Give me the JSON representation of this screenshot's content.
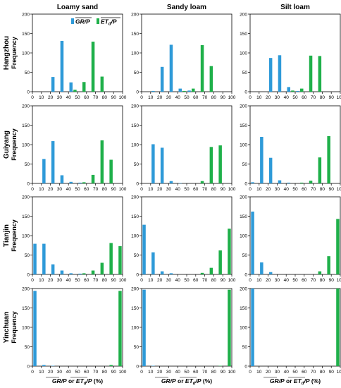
{
  "figure": {
    "columns": [
      "Loamy sand",
      "Sandy loam",
      "Silt loam"
    ],
    "rows": [
      "Hangzhou",
      "Guiyang",
      "Tianjin",
      "Yinchuan"
    ],
    "ylabel": "Frequency",
    "xlabel": "GR/P or ETd/P (%)",
    "xlabel_parts": {
      "a": "GR/P",
      "mid": " or ",
      "b": "ET",
      "sub": "d",
      "c": "/P",
      "tail": " (%)"
    },
    "legend": [
      "GR/P",
      "ETd/P"
    ],
    "legend_parts": {
      "gr": "GR/P",
      "et": "ET",
      "et_sub": "d",
      "et_tail": "/P"
    },
    "yticks": [
      0,
      50,
      100,
      150,
      200
    ],
    "xticks": [
      0,
      10,
      20,
      30,
      40,
      50,
      60,
      70,
      80,
      90,
      100
    ],
    "colors": {
      "gr": "#2e9ad8",
      "et": "#1fb04a"
    }
  },
  "chart_data": [
    {
      "type": "bar",
      "row": "Hangzhou",
      "column": "Loamy sand",
      "xlim": [
        0,
        100
      ],
      "ylim": [
        0,
        200
      ],
      "x": [
        5,
        15,
        25,
        35,
        45,
        55,
        65,
        75,
        85,
        95
      ],
      "series": [
        {
          "name": "GR/P",
          "values": [
            0,
            0,
            38,
            131,
            24,
            0,
            0,
            0,
            0,
            0
          ]
        },
        {
          "name": "ETd/P",
          "values": [
            0,
            0,
            0,
            0,
            5,
            25,
            129,
            39,
            0,
            0
          ]
        }
      ]
    },
    {
      "type": "bar",
      "row": "Hangzhou",
      "column": "Sandy loam",
      "xlim": [
        0,
        100
      ],
      "ylim": [
        0,
        200
      ],
      "x": [
        5,
        15,
        25,
        35,
        45,
        55,
        65,
        75,
        85,
        95
      ],
      "series": [
        {
          "name": "GR/P",
          "values": [
            0,
            2,
            64,
            121,
            8,
            3,
            0,
            0,
            0,
            0
          ]
        },
        {
          "name": "ETd/P",
          "values": [
            0,
            0,
            0,
            0,
            2,
            8,
            120,
            66,
            0,
            0
          ]
        }
      ]
    },
    {
      "type": "bar",
      "row": "Hangzhou",
      "column": "Silt loam",
      "xlim": [
        0,
        100
      ],
      "ylim": [
        0,
        200
      ],
      "x": [
        5,
        15,
        25,
        35,
        45,
        55,
        65,
        75,
        85,
        95
      ],
      "series": [
        {
          "name": "GR/P",
          "values": [
            0,
            0,
            87,
            94,
            12,
            2,
            0,
            0,
            0,
            0
          ]
        },
        {
          "name": "ETd/P",
          "values": [
            0,
            0,
            0,
            0,
            3,
            8,
            93,
            92,
            0,
            0
          ]
        }
      ]
    },
    {
      "type": "bar",
      "row": "Guiyang",
      "column": "Loamy sand",
      "xlim": [
        0,
        100
      ],
      "ylim": [
        0,
        200
      ],
      "x": [
        5,
        15,
        25,
        35,
        45,
        55,
        65,
        75,
        85,
        95
      ],
      "series": [
        {
          "name": "GR/P",
          "values": [
            0,
            63,
            109,
            21,
            4,
            2,
            0,
            0,
            0,
            0
          ]
        },
        {
          "name": "ETd/P",
          "values": [
            0,
            0,
            0,
            0,
            0,
            3,
            22,
            111,
            61,
            0
          ]
        }
      ]
    },
    {
      "type": "bar",
      "row": "Guiyang",
      "column": "Sandy loam",
      "xlim": [
        0,
        100
      ],
      "ylim": [
        0,
        200
      ],
      "x": [
        5,
        15,
        25,
        35,
        45,
        55,
        65,
        75,
        85,
        95
      ],
      "series": [
        {
          "name": "GR/P",
          "values": [
            0,
            101,
            92,
            6,
            1,
            0,
            0,
            0,
            0,
            0
          ]
        },
        {
          "name": "ETd/P",
          "values": [
            0,
            0,
            0,
            0,
            0,
            0,
            6,
            94,
            98,
            0
          ]
        }
      ]
    },
    {
      "type": "bar",
      "row": "Guiyang",
      "column": "Silt loam",
      "xlim": [
        0,
        100
      ],
      "ylim": [
        0,
        200
      ],
      "x": [
        5,
        15,
        25,
        35,
        45,
        55,
        65,
        75,
        85,
        95
      ],
      "series": [
        {
          "name": "GR/P",
          "values": [
            3,
            120,
            66,
            8,
            2,
            0,
            0,
            0,
            0,
            0
          ]
        },
        {
          "name": "ETd/P",
          "values": [
            0,
            0,
            0,
            0,
            0,
            2,
            7,
            67,
            122,
            0
          ]
        }
      ]
    },
    {
      "type": "bar",
      "row": "Tianjin",
      "column": "Loamy sand",
      "xlim": [
        0,
        100
      ],
      "ylim": [
        0,
        200
      ],
      "x": [
        5,
        15,
        25,
        35,
        45,
        55,
        65,
        75,
        85,
        95
      ],
      "series": [
        {
          "name": "GR/P",
          "values": [
            79,
            79,
            26,
            10,
            3,
            2,
            0,
            0,
            0,
            0
          ]
        },
        {
          "name": "ETd/P",
          "values": [
            0,
            0,
            0,
            0,
            0,
            3,
            10,
            30,
            81,
            73
          ]
        }
      ]
    },
    {
      "type": "bar",
      "row": "Tianjin",
      "column": "Sandy loam",
      "xlim": [
        0,
        100
      ],
      "ylim": [
        0,
        200
      ],
      "x": [
        5,
        15,
        25,
        35,
        45,
        55,
        65,
        75,
        85,
        95
      ],
      "series": [
        {
          "name": "GR/P",
          "values": [
            128,
            57,
            8,
            3,
            0,
            0,
            0,
            0,
            0,
            0
          ]
        },
        {
          "name": "ETd/P",
          "values": [
            0,
            0,
            0,
            0,
            0,
            0,
            4,
            17,
            62,
            118
          ]
        }
      ]
    },
    {
      "type": "bar",
      "row": "Tianjin",
      "column": "Silt loam",
      "xlim": [
        0,
        100
      ],
      "ylim": [
        0,
        200
      ],
      "x": [
        5,
        15,
        25,
        35,
        45,
        55,
        65,
        75,
        85,
        95
      ],
      "series": [
        {
          "name": "GR/P",
          "values": [
            162,
            31,
            6,
            0,
            0,
            0,
            0,
            0,
            0,
            0
          ]
        },
        {
          "name": "ETd/P",
          "values": [
            0,
            0,
            0,
            0,
            0,
            0,
            0,
            8,
            47,
            143
          ]
        }
      ]
    },
    {
      "type": "bar",
      "row": "Yinchuan",
      "column": "Loamy sand",
      "xlim": [
        0,
        100
      ],
      "ylim": [
        0,
        200
      ],
      "x": [
        5,
        15,
        25,
        35,
        45,
        55,
        65,
        75,
        85,
        95
      ],
      "series": [
        {
          "name": "GR/P",
          "values": [
            194,
            3,
            1,
            0,
            0,
            0,
            0,
            0,
            0,
            0
          ]
        },
        {
          "name": "ETd/P",
          "values": [
            0,
            0,
            0,
            0,
            0,
            0,
            0,
            0,
            3,
            194
          ]
        }
      ]
    },
    {
      "type": "bar",
      "row": "Yinchuan",
      "column": "Sandy loam",
      "xlim": [
        0,
        100
      ],
      "ylim": [
        0,
        200
      ],
      "x": [
        5,
        15,
        25,
        35,
        45,
        55,
        65,
        75,
        85,
        95
      ],
      "series": [
        {
          "name": "GR/P",
          "values": [
            197,
            1,
            0,
            0,
            0,
            0,
            0,
            0,
            0,
            0
          ]
        },
        {
          "name": "ETd/P",
          "values": [
            0,
            0,
            0,
            0,
            0,
            0,
            0,
            0,
            1,
            197
          ]
        }
      ]
    },
    {
      "type": "bar",
      "row": "Yinchuan",
      "column": "Silt loam",
      "xlim": [
        0,
        100
      ],
      "ylim": [
        0,
        200
      ],
      "x": [
        5,
        15,
        25,
        35,
        45,
        55,
        65,
        75,
        85,
        95
      ],
      "series": [
        {
          "name": "GR/P",
          "values": [
            200,
            0,
            0,
            0,
            0,
            0,
            0,
            0,
            0,
            0
          ]
        },
        {
          "name": "ETd/P",
          "values": [
            0,
            0,
            0,
            0,
            0,
            0,
            0,
            0,
            0,
            200
          ]
        }
      ]
    }
  ]
}
